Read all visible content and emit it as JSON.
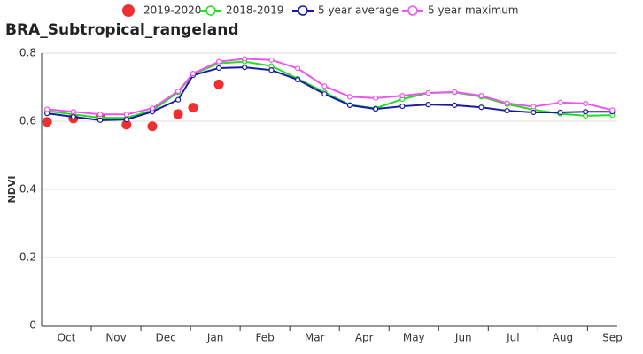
{
  "chart_data": {
    "type": "line",
    "title": "BRA_Subtropical_rangeland",
    "y_label": "NDVI",
    "x": [
      0.11,
      0.64,
      1.18,
      1.71,
      2.23,
      2.75,
      3.05,
      3.57,
      4.09,
      4.63,
      5.16,
      5.7,
      6.21,
      6.73,
      7.27,
      7.79,
      8.32,
      8.86,
      9.38,
      9.91,
      10.45,
      10.96,
      11.5
    ],
    "xlim": [
      0,
      11.6
    ],
    "xticks": [
      {
        "value": 0.5,
        "label": "Oct"
      },
      {
        "value": 1.5,
        "label": "Nov"
      },
      {
        "value": 2.5,
        "label": "Dec"
      },
      {
        "value": 3.5,
        "label": "Jan"
      },
      {
        "value": 4.5,
        "label": "Feb"
      },
      {
        "value": 5.5,
        "label": "Mar"
      },
      {
        "value": 6.5,
        "label": "Apr"
      },
      {
        "value": 7.5,
        "label": "May"
      },
      {
        "value": 8.5,
        "label": "Jun"
      },
      {
        "value": 9.5,
        "label": "Jul"
      },
      {
        "value": 10.5,
        "label": "Aug"
      },
      {
        "value": 11.5,
        "label": "Sep"
      }
    ],
    "ylim": [
      0,
      0.8
    ],
    "yticks": [
      0,
      0.2,
      0.4,
      0.6,
      0.8
    ],
    "grid": true,
    "legend": "top",
    "series": [
      {
        "name": "2019-2020",
        "color": "#f03030",
        "style": "dots",
        "values": [
          0.598,
          0.608,
          0.612,
          0.59,
          0.585,
          0.621,
          0.64,
          0.708,
          null,
          null,
          null,
          null,
          null,
          null,
          null,
          null,
          null,
          null,
          null,
          null,
          null,
          null,
          null
        ]
      },
      {
        "name": "2018-2019",
        "color": "#22dd22",
        "style": "line",
        "values": [
          0.63,
          0.62,
          0.61,
          0.61,
          0.632,
          0.685,
          0.738,
          0.77,
          0.775,
          0.762,
          0.725,
          0.685,
          0.648,
          0.638,
          0.665,
          0.683,
          0.685,
          0.672,
          0.65,
          0.634,
          0.622,
          0.616,
          0.618
        ]
      },
      {
        "name": "5 year average",
        "color": "#1a1aa0",
        "style": "line",
        "values": [
          0.623,
          0.613,
          0.603,
          0.605,
          0.628,
          0.663,
          0.735,
          0.756,
          0.758,
          0.75,
          0.722,
          0.68,
          0.647,
          0.636,
          0.644,
          0.649,
          0.647,
          0.641,
          0.631,
          0.626,
          0.626,
          0.628,
          0.628
        ]
      },
      {
        "name": "5 year maximum",
        "color": "#ee55ee",
        "style": "line",
        "values": [
          0.635,
          0.628,
          0.62,
          0.62,
          0.638,
          0.688,
          0.74,
          0.775,
          0.783,
          0.78,
          0.755,
          0.703,
          0.672,
          0.668,
          0.675,
          0.683,
          0.686,
          0.675,
          0.653,
          0.643,
          0.655,
          0.652,
          0.633
        ]
      }
    ]
  }
}
